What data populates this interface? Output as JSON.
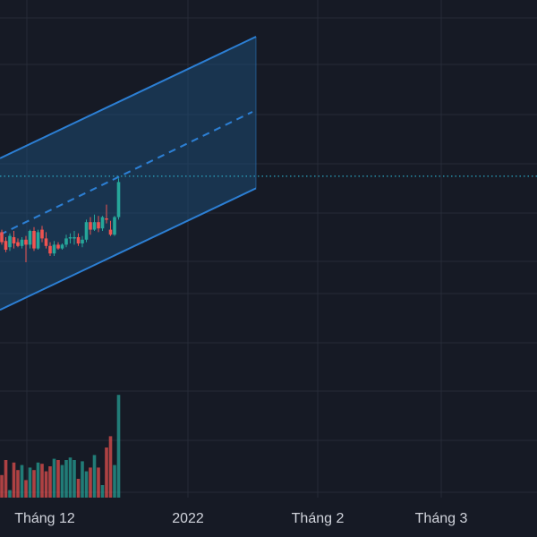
{
  "chart_data": {
    "type": "candlestick",
    "x_axis": {
      "tick_labels": [
        "Tháng 12",
        "2022",
        "Tháng 2",
        "Tháng 3"
      ]
    },
    "grid": true,
    "colors": {
      "background": "#161a25",
      "grid": "#262b38",
      "up": "#26a69a",
      "down": "#ef5350",
      "channel_line": "#2c7fd4",
      "channel_fill": "#1e4a72",
      "price_line": "#2aa6c2",
      "axis_text": "#d1d4dc"
    },
    "candles": [
      {
        "o": 4,
        "h": 6,
        "l": -6,
        "c": -4
      },
      {
        "o": -3,
        "h": 0,
        "l": -12,
        "c": -10
      },
      {
        "o": -8,
        "h": 3,
        "l": -11,
        "c": 1
      },
      {
        "o": 0,
        "h": 5,
        "l": -9,
        "c": -5
      },
      {
        "o": -4,
        "h": -1,
        "l": -8,
        "c": -7
      },
      {
        "o": -7,
        "h": 0,
        "l": -9,
        "c": -2
      },
      {
        "o": -2,
        "h": 1,
        "l": -20,
        "c": -6
      },
      {
        "o": -6,
        "h": 6,
        "l": -9,
        "c": 5
      },
      {
        "o": 5,
        "h": 8,
        "l": -11,
        "c": -9
      },
      {
        "o": -9,
        "h": 6,
        "l": -10,
        "c": 4
      },
      {
        "o": 6,
        "h": 9,
        "l": -4,
        "c": -1
      },
      {
        "o": -1,
        "h": 4,
        "l": -9,
        "c": -7
      },
      {
        "o": -7,
        "h": -4,
        "l": -15,
        "c": -13
      },
      {
        "o": -13,
        "h": -3,
        "l": -15,
        "c": -6
      },
      {
        "o": -6,
        "h": -4,
        "l": -10,
        "c": -9
      },
      {
        "o": -9,
        "h": -5,
        "l": -10,
        "c": -6
      },
      {
        "o": -6,
        "h": 2,
        "l": -8,
        "c": -1
      },
      {
        "o": -1,
        "h": 3,
        "l": -5,
        "c": 0
      },
      {
        "o": 0,
        "h": 5,
        "l": -6,
        "c": 0
      },
      {
        "o": 0,
        "h": 3,
        "l": -7,
        "c": -5
      },
      {
        "o": -5,
        "h": 1,
        "l": -8,
        "c": -2
      },
      {
        "o": -2,
        "h": 14,
        "l": -4,
        "c": 12
      },
      {
        "o": 12,
        "h": 16,
        "l": 2,
        "c": 6
      },
      {
        "o": 6,
        "h": 18,
        "l": 5,
        "c": 12
      },
      {
        "o": 12,
        "h": 17,
        "l": 4,
        "c": 7
      },
      {
        "o": 7,
        "h": 17,
        "l": 5,
        "c": 16
      },
      {
        "o": 15,
        "h": 26,
        "l": 11,
        "c": 14
      },
      {
        "o": 6,
        "h": 13,
        "l": 1,
        "c": 2
      },
      {
        "o": 2,
        "h": 17,
        "l": 1,
        "c": 16
      },
      {
        "o": 16,
        "h": 47,
        "l": 14,
        "c": 44
      }
    ],
    "volume": [
      18,
      30,
      6,
      28,
      22,
      26,
      14,
      24,
      22,
      28,
      27,
      21,
      25,
      31,
      30,
      26,
      30,
      32,
      30,
      15,
      29,
      21,
      24,
      34,
      24,
      10,
      40,
      49,
      26,
      82
    ],
    "channel": {
      "upper_start": 63,
      "upper_end": 160,
      "lower_start": -58,
      "lower_end": 39,
      "mid_start": 2,
      "mid_end": 100
    },
    "last_price": 49
  }
}
